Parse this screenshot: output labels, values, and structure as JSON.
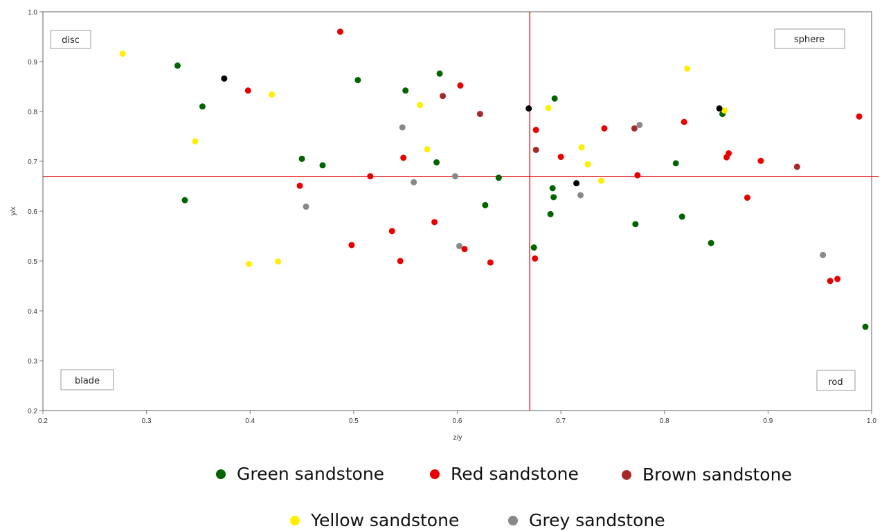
{
  "chart_data": {
    "type": "scatter",
    "xlabel": "z/y",
    "ylabel": "y/x",
    "xlim": [
      0.2,
      1.0
    ],
    "ylim": [
      0.2,
      1.0
    ],
    "x_ticks": [
      "0.2",
      "0.3",
      "0.4",
      "0.5",
      "0.6",
      "0.7",
      "0.8",
      "0.9",
      "1.0"
    ],
    "y_ticks": [
      "0.2",
      "0.3",
      "0.4",
      "0.5",
      "0.6",
      "0.7",
      "0.8",
      "0.9",
      "1.0"
    ],
    "grid": false,
    "reference_lines": {
      "x": 0.67,
      "y": 0.67,
      "color": "#e00000"
    },
    "quadrant_labels": {
      "top_left": "disc",
      "top_right": "sphere",
      "bottom_left": "blade",
      "bottom_right": "rod"
    },
    "legend_position": "bottom",
    "series": [
      {
        "name": "Green sandstone",
        "color": "#006400",
        "points": [
          [
            0.33,
            0.892
          ],
          [
            0.354,
            0.81
          ],
          [
            0.337,
            0.622
          ],
          [
            0.45,
            0.705
          ],
          [
            0.47,
            0.692
          ],
          [
            0.504,
            0.863
          ],
          [
            0.55,
            0.842
          ],
          [
            0.583,
            0.876
          ],
          [
            0.58,
            0.698
          ],
          [
            0.64,
            0.667
          ],
          [
            0.627,
            0.612
          ],
          [
            0.694,
            0.826
          ],
          [
            0.692,
            0.646
          ],
          [
            0.693,
            0.628
          ],
          [
            0.69,
            0.594
          ],
          [
            0.674,
            0.527
          ],
          [
            0.772,
            0.574
          ],
          [
            0.811,
            0.696
          ],
          [
            0.817,
            0.589
          ],
          [
            0.845,
            0.536
          ],
          [
            0.856,
            0.795
          ],
          [
            0.994,
            0.368
          ]
        ]
      },
      {
        "name": "Red sandstone",
        "color": "#e80000",
        "points": [
          [
            0.487,
            0.96
          ],
          [
            0.398,
            0.842
          ],
          [
            0.603,
            0.852
          ],
          [
            0.448,
            0.651
          ],
          [
            0.516,
            0.67
          ],
          [
            0.548,
            0.707
          ],
          [
            0.498,
            0.532
          ],
          [
            0.537,
            0.56
          ],
          [
            0.545,
            0.5
          ],
          [
            0.578,
            0.578
          ],
          [
            0.607,
            0.524
          ],
          [
            0.632,
            0.497
          ],
          [
            0.676,
            0.763
          ],
          [
            0.7,
            0.709
          ],
          [
            0.675,
            0.505
          ],
          [
            0.742,
            0.766
          ],
          [
            0.774,
            0.672
          ],
          [
            0.819,
            0.779
          ],
          [
            0.86,
            0.708
          ],
          [
            0.862,
            0.716
          ],
          [
            0.893,
            0.701
          ],
          [
            0.88,
            0.627
          ],
          [
            0.988,
            0.79
          ],
          [
            0.96,
            0.46
          ],
          [
            0.967,
            0.464
          ]
        ]
      },
      {
        "name": "Brown sandstone",
        "color": "#a52a2a",
        "points": [
          [
            0.586,
            0.831
          ],
          [
            0.622,
            0.795
          ],
          [
            0.676,
            0.723
          ],
          [
            0.771,
            0.766
          ],
          [
            0.928,
            0.689
          ]
        ]
      },
      {
        "name": "Yellow sandstone",
        "color": "#ffee00",
        "points": [
          [
            0.277,
            0.916
          ],
          [
            0.421,
            0.834
          ],
          [
            0.347,
            0.74
          ],
          [
            0.564,
            0.813
          ],
          [
            0.571,
            0.724
          ],
          [
            0.399,
            0.494
          ],
          [
            0.427,
            0.499
          ],
          [
            0.688,
            0.807
          ],
          [
            0.72,
            0.728
          ],
          [
            0.726,
            0.694
          ],
          [
            0.739,
            0.661
          ],
          [
            0.822,
            0.886
          ],
          [
            0.858,
            0.802
          ]
        ]
      },
      {
        "name": "Grey sandstone",
        "color": "#888888",
        "points": [
          [
            0.547,
            0.768
          ],
          [
            0.558,
            0.658
          ],
          [
            0.454,
            0.609
          ],
          [
            0.598,
            0.67
          ],
          [
            0.602,
            0.53
          ],
          [
            0.719,
            0.632
          ],
          [
            0.776,
            0.773
          ],
          [
            0.953,
            0.512
          ]
        ]
      },
      {
        "color": "#000000",
        "points": [
          [
            0.375,
            0.866
          ],
          [
            0.669,
            0.806
          ],
          [
            0.715,
            0.656
          ],
          [
            0.853,
            0.806
          ]
        ]
      }
    ]
  },
  "legend": [
    {
      "name": "Green sandstone",
      "color": "#006400"
    },
    {
      "name": "Red sandstone",
      "color": "#e80000"
    },
    {
      "name": "Brown sandstone",
      "color": "#a52a2a"
    },
    {
      "name": "Yellow sandstone",
      "color": "#ffee00"
    },
    {
      "name": "Grey sandstone",
      "color": "#888888"
    }
  ]
}
